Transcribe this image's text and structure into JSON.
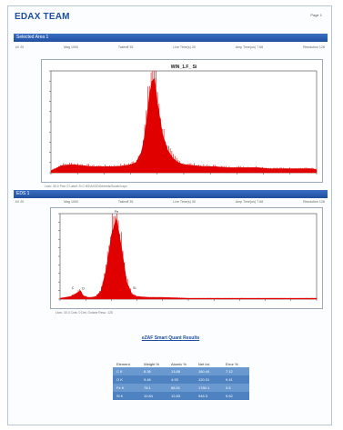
{
  "header": {
    "brand": "EDAX TEAM",
    "page_label": "Page 1"
  },
  "section1": {
    "bar_title": "Selected Area 1",
    "meta": [
      "kV 20",
      "Mag 1000",
      "Takeoff 35",
      "Live Time(s) 30",
      "Amp Time(us) 7.68",
      "Resolution 128"
    ],
    "chart_title": "WIN_1.F_ Si",
    "caption": "Lsec: 30.0  Prst: 0  Label: Si  C:\\EDAX32\\Genesis\\Scratch.spc"
  },
  "section2": {
    "bar_title": "EDS 1",
    "meta": [
      "kV 20",
      "Mag 1000",
      "Takeoff 35",
      "Live Time(s) 30",
      "Amp Time(us) 7.68",
      "Resolution 128"
    ],
    "caption": "Lsec: 30.0  Cnts: 0  Det: Octane  Reso: 128"
  },
  "results": {
    "title": "eZAF Smart Quant Results",
    "headers": [
      "Element",
      "Weight %",
      "Atomic %",
      "Net Int.",
      "Error %"
    ],
    "rows": [
      [
        "C K",
        "8.36",
        "13.88",
        "180.44",
        "7.12"
      ],
      [
        "O K",
        "9.46",
        "4.93",
        "120.31",
        "9.41"
      ],
      [
        "Fe K",
        "78.1",
        "68.51",
        "1780.1",
        "3.6"
      ],
      [
        "Si K",
        "10.84",
        "12.83",
        "946.3",
        "9.62"
      ]
    ]
  },
  "chart_data": [
    {
      "type": "area",
      "title": "WIN_1.F_ Si",
      "x": [
        0,
        4,
        8,
        12,
        16,
        20,
        24,
        28,
        30,
        32,
        34,
        35,
        36,
        37,
        38,
        39,
        40,
        42,
        44,
        46,
        48,
        50,
        54,
        58,
        62,
        66,
        70,
        74,
        78,
        82,
        86,
        90,
        94,
        98,
        100
      ],
      "y": [
        2,
        7,
        8,
        7,
        6,
        6,
        6,
        7,
        8,
        10,
        20,
        32,
        52,
        75,
        90,
        93,
        70,
        38,
        22,
        14,
        10,
        8,
        7,
        6,
        6,
        5,
        5,
        5,
        5,
        4,
        4,
        4,
        4,
        4,
        3
      ],
      "ylim": [
        0,
        100
      ],
      "color": "#e00000"
    },
    {
      "type": "area",
      "title": "",
      "x": [
        0,
        2,
        4,
        6,
        8,
        9,
        10,
        11,
        12,
        14,
        16,
        18,
        20,
        22,
        24,
        26,
        28,
        30,
        35,
        40,
        50,
        60,
        70,
        80,
        90,
        100
      ],
      "y": [
        1,
        2,
        3,
        6,
        10,
        4,
        3,
        2,
        2,
        3,
        10,
        35,
        75,
        95,
        60,
        20,
        6,
        3,
        2,
        2,
        1,
        1,
        1,
        1,
        1,
        1
      ],
      "ylim": [
        0,
        100
      ],
      "color": "#e00000",
      "peak_labels": [
        {
          "text": "C",
          "x": 5
        },
        {
          "text": "O",
          "x": 9
        },
        {
          "text": "Fe",
          "x": 22
        },
        {
          "text": "Si",
          "x": 29
        }
      ]
    }
  ]
}
